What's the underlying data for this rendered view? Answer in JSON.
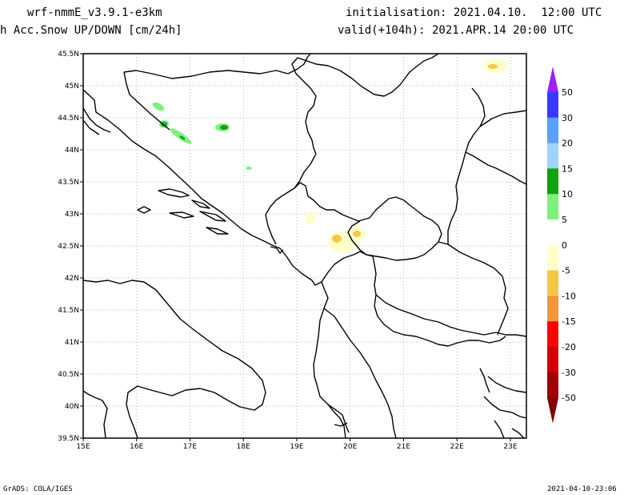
{
  "header": {
    "model": "wrf-nmmE_v3.9.1-e3km",
    "variable": "h Acc.Snow UP/DOWN [cm/24h]",
    "initialisation": "initialisation: 2021.04.10.  12:00 UTC",
    "valid": "valid(+104h): 2021.APR.14 20:00 UTC"
  },
  "footer": {
    "credit": "GrADS: COLA/IGES",
    "timestamp": "2021-04-10-23:06"
  },
  "map": {
    "lon_range": [
      15,
      23.3
    ],
    "lat_range": [
      39.5,
      45.5
    ],
    "lon_ticks": [
      "15E",
      "16E",
      "17E",
      "18E",
      "19E",
      "20E",
      "21E",
      "22E",
      "23E"
    ],
    "lat_ticks": [
      "39.5N",
      "40N",
      "40.5N",
      "41N",
      "41.5N",
      "42N",
      "42.5N",
      "43N",
      "43.5N",
      "44N",
      "44.5N",
      "45N",
      "45.5N"
    ],
    "grid": "dotted"
  },
  "colorbar": {
    "labels": [
      "50",
      "30",
      "20",
      "15",
      "10",
      "5",
      "0",
      "-5",
      "-10",
      "-15",
      "-20",
      "-30",
      "-50"
    ],
    "colors": [
      "#a020f0",
      "#3a3aff",
      "#5aa0ff",
      "#a0d2ff",
      "#10a010",
      "#7ef07e",
      "#ffffff",
      "#ffffcc",
      "#f5c842",
      "#f5963c",
      "#ff0000",
      "#d20000",
      "#a00000",
      "#800000"
    ]
  }
}
